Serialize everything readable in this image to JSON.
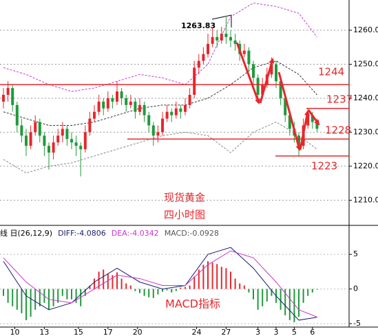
{
  "chart_data": [
    {
      "type": "candlestick",
      "title": "现货黄金",
      "subtitle": "四小时图",
      "annotation": "1263.83",
      "up_color": "#e8262b",
      "down_color": "#1f9a3a",
      "level_color": "#e8262b",
      "grid": true,
      "ylim": [
        1203.2,
        1268.9
      ],
      "yticks": [
        {
          "value": 1210,
          "label": "1210.0"
        },
        {
          "value": 1220,
          "label": "1220.0"
        },
        {
          "value": 1230,
          "label": "1230.0"
        },
        {
          "value": 1240,
          "label": "1240.0"
        },
        {
          "value": 1250,
          "label": "1250.0"
        },
        {
          "value": 1260,
          "label": "1260.0"
        }
      ],
      "ohlc": [
        [
          1239,
          1243,
          1237,
          1241
        ],
        [
          1241,
          1245,
          1239,
          1243
        ],
        [
          1243,
          1244,
          1236,
          1238
        ],
        [
          1238,
          1239,
          1230,
          1232
        ],
        [
          1232,
          1234,
          1227,
          1229
        ],
        [
          1229,
          1231,
          1223,
          1226
        ],
        [
          1226,
          1232,
          1225,
          1230
        ],
        [
          1230,
          1235,
          1229,
          1233
        ],
        [
          1233,
          1234,
          1227,
          1229
        ],
        [
          1229,
          1230,
          1223,
          1226
        ],
        [
          1226,
          1227,
          1219,
          1224
        ],
        [
          1224,
          1229,
          1222,
          1227
        ],
        [
          1227,
          1231,
          1226,
          1229
        ],
        [
          1229,
          1233,
          1227,
          1231
        ],
        [
          1231,
          1232,
          1226,
          1228
        ],
        [
          1228,
          1230,
          1225,
          1227
        ],
        [
          1227,
          1229,
          1223,
          1226
        ],
        [
          1226,
          1227,
          1217,
          1225
        ],
        [
          1225,
          1232,
          1224,
          1230
        ],
        [
          1230,
          1236,
          1229,
          1234
        ],
        [
          1234,
          1238,
          1233,
          1236
        ],
        [
          1236,
          1241,
          1235,
          1239
        ],
        [
          1239,
          1240,
          1235,
          1237
        ],
        [
          1237,
          1242,
          1236,
          1240
        ],
        [
          1240,
          1241,
          1237,
          1239
        ],
        [
          1239,
          1245,
          1238,
          1242
        ],
        [
          1242,
          1243,
          1238,
          1240
        ],
        [
          1240,
          1241,
          1236,
          1238
        ],
        [
          1238,
          1241,
          1237,
          1239
        ],
        [
          1239,
          1240,
          1234,
          1236
        ],
        [
          1236,
          1240,
          1235,
          1238
        ],
        [
          1238,
          1239,
          1233,
          1235
        ],
        [
          1235,
          1236,
          1230,
          1232
        ],
        [
          1232,
          1233,
          1226,
          1229
        ],
        [
          1229,
          1232,
          1227,
          1230
        ],
        [
          1230,
          1236,
          1229,
          1234
        ],
        [
          1234,
          1238,
          1233,
          1236
        ],
        [
          1236,
          1237,
          1233,
          1235
        ],
        [
          1235,
          1239,
          1234,
          1237
        ],
        [
          1237,
          1238,
          1234,
          1236
        ],
        [
          1236,
          1240,
          1235,
          1238
        ],
        [
          1238,
          1243,
          1237,
          1241
        ],
        [
          1241,
          1251,
          1240,
          1249
        ],
        [
          1249,
          1253,
          1247,
          1251
        ],
        [
          1251,
          1255,
          1250,
          1253
        ],
        [
          1253,
          1259,
          1252,
          1256
        ],
        [
          1256,
          1261,
          1255,
          1258
        ],
        [
          1258,
          1260,
          1255,
          1257
        ],
        [
          1257,
          1261,
          1256,
          1259
        ],
        [
          1259,
          1263.83,
          1256,
          1258
        ],
        [
          1258,
          1260,
          1255,
          1257
        ],
        [
          1257,
          1259,
          1254,
          1256
        ],
        [
          1256,
          1257,
          1251,
          1253
        ],
        [
          1253,
          1256,
          1252,
          1254
        ],
        [
          1254,
          1255,
          1248,
          1250
        ],
        [
          1250,
          1251,
          1244,
          1246
        ],
        [
          1246,
          1247,
          1239,
          1241
        ],
        [
          1241,
          1246,
          1240,
          1244
        ],
        [
          1244,
          1249,
          1243,
          1247
        ],
        [
          1247,
          1252,
          1246,
          1250
        ],
        [
          1250,
          1251,
          1243,
          1245
        ],
        [
          1245,
          1246,
          1238,
          1240
        ],
        [
          1240,
          1241,
          1233,
          1235
        ],
        [
          1235,
          1236,
          1229,
          1231
        ],
        [
          1231,
          1233,
          1227,
          1229
        ],
        [
          1229,
          1230,
          1223,
          1226
        ],
        [
          1226,
          1234,
          1225,
          1232
        ],
        [
          1232,
          1237,
          1231,
          1235
        ],
        [
          1235,
          1236,
          1231,
          1233
        ],
        [
          1233,
          1234,
          1230,
          1231
        ]
      ],
      "bands": {
        "x": [
          0,
          5,
          10,
          15,
          20,
          25,
          30,
          35,
          40,
          45,
          50,
          55,
          60,
          65,
          69
        ],
        "upper": [
          1249,
          1247,
          1244,
          1242,
          1243,
          1245,
          1247,
          1246,
          1244,
          1250,
          1264,
          1268,
          1267,
          1265,
          1258
        ],
        "upper_color": "#cc33cc",
        "middle": [
          1236,
          1234,
          1232,
          1232,
          1233,
          1235,
          1237,
          1238,
          1238,
          1240,
          1244,
          1249,
          1251,
          1247,
          1241
        ],
        "middle_color": "#333333",
        "lower": [
          1222,
          1218,
          1220,
          1221,
          1223,
          1225,
          1227,
          1229,
          1230,
          1229,
          1224,
          1230,
          1233,
          1229,
          1225
        ],
        "lower_color": "#888888"
      },
      "levels": [
        {
          "value": 1244
        },
        {
          "value": 1237
        },
        {
          "value": 1228
        },
        {
          "value": 1223
        }
      ]
    },
    {
      "type": "macd",
      "title": "MACD指标",
      "header": [
        {
          "text": "线 日(26,12,9)",
          "color": "#000000"
        },
        {
          "text": "DIFF:-4.0806",
          "color": "#1a1a6e"
        },
        {
          "text": "DEA:-4.0342",
          "color": "#cc33cc"
        },
        {
          "text": "MACD:-0.0928",
          "color": "#555555"
        }
      ],
      "ylim": [
        -5.4,
        7
      ],
      "yticks": [
        5,
        0,
        -5
      ],
      "up_color": "#e8262b",
      "down_color": "#1f9a3a",
      "x": [
        0,
        5,
        10,
        15,
        20,
        25,
        30,
        35,
        40,
        45,
        50,
        55,
        60,
        65,
        69
      ],
      "series": [
        {
          "color": "#1a1a6e",
          "values": [
            4,
            -1,
            -3,
            -2,
            1,
            3,
            1,
            0,
            0.5,
            5,
            6,
            3,
            -1,
            -4.5,
            -4.0806
          ]
        },
        {
          "color": "#cc33cc",
          "values": [
            4.5,
            1,
            -1.5,
            -2,
            0,
            2,
            1.5,
            0.5,
            0.5,
            3.5,
            5.5,
            4.5,
            1,
            -3,
            -4.0342
          ]
        }
      ],
      "histogram": [
        -1,
        -2,
        -2.5,
        -3,
        -3.5,
        -4.5,
        -4,
        -3,
        -2.5,
        -2,
        -3,
        -2.5,
        -2,
        -1,
        -1.5,
        -1.5,
        -2,
        -2.5,
        -1,
        0.5,
        1.5,
        2.5,
        2.8,
        2.2,
        2,
        2.4,
        1.5,
        0.8,
        0.5,
        -0.3,
        -0.6,
        -1,
        -1.2,
        -1.3,
        -0.8,
        -0.4,
        -0.2,
        -0.5,
        -0.3,
        0.2,
        0.3,
        0.5,
        1.8,
        2.8,
        3.5,
        4,
        3.8,
        3.6,
        3.2,
        3,
        2.5,
        1.5,
        0.8,
        0.5,
        -0.5,
        -1.5,
        -3,
        -2.5,
        -1.8,
        -1,
        -2,
        -3,
        -3.8,
        -4.5,
        -4.8,
        -4,
        -2,
        -1,
        -0.5,
        -0.0928
      ],
      "xticks": [
        {
          "value": 2.5,
          "label": "10"
        },
        {
          "value": 9,
          "label": "13"
        },
        {
          "value": 16.5,
          "label": "15"
        },
        {
          "value": 23,
          "label": "17"
        },
        {
          "value": 29.5,
          "label": "20"
        },
        {
          "value": 42.5,
          "label": "24"
        },
        {
          "value": 49,
          "label": "27"
        },
        {
          "value": 56,
          "label": "3"
        },
        {
          "value": 60,
          "label": "3"
        },
        {
          "value": 64,
          "label": "5"
        },
        {
          "value": 68,
          "label": "6"
        }
      ]
    }
  ]
}
